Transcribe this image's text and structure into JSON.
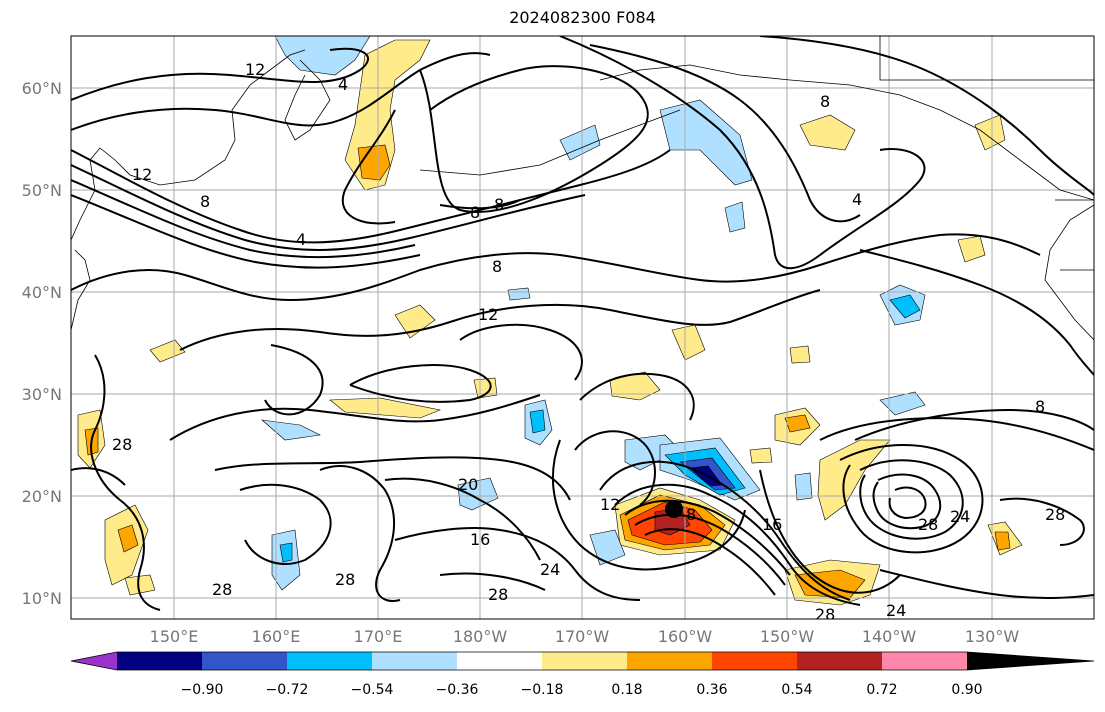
{
  "title": "2024082300 F084",
  "latitudes": [
    "60°N",
    "50°N",
    "40°N",
    "30°N",
    "20°N",
    "10°N"
  ],
  "longitudes": [
    "150°E",
    "160°E",
    "170°E",
    "180°W",
    "170°W",
    "160°W",
    "150°W",
    "140°W",
    "130°W"
  ],
  "colorbar": {
    "ticks": [
      "−0.90",
      "−0.72",
      "−0.54",
      "−0.36",
      "−0.18",
      "0.18",
      "0.36",
      "0.54",
      "0.72",
      "0.90"
    ],
    "colors": [
      "#9933cc",
      "#000080",
      "#3355cc",
      "#00bfff",
      "#b0e0ff",
      "#ffffff",
      "#ffeb8a",
      "#ffa500",
      "#ff4500",
      "#b22222",
      "#ff88aa"
    ]
  },
  "contour_labels": [
    "12",
    "8",
    "4",
    "8",
    "8",
    "8",
    "4",
    "12",
    "28",
    "20",
    "16",
    "28",
    "28",
    "12",
    "8",
    "16",
    "24",
    "28",
    "28",
    "24",
    "28",
    "24",
    "28",
    "8",
    "12",
    "8",
    "4"
  ],
  "colors": {
    "frame": "#000000",
    "grid": "#aaaaaa",
    "contour": "#000000",
    "marker": "#000000"
  }
}
